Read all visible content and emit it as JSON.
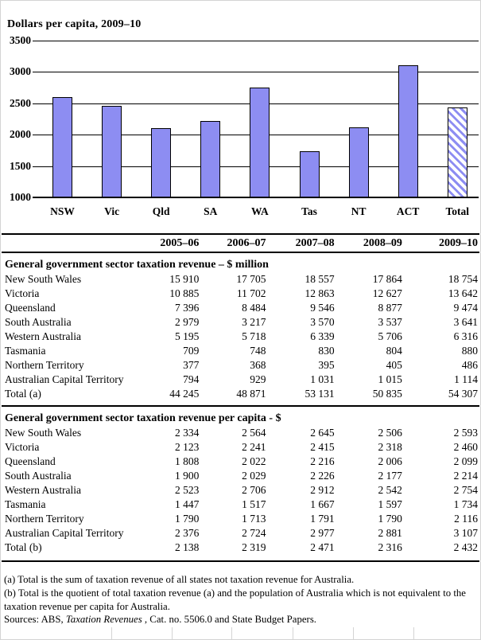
{
  "colors": {
    "bar_fill": "#8d8df2",
    "bar_border": "#000000",
    "grid_color": "#000000",
    "frame_color": "#d4d4d4",
    "text_color": "#000000"
  },
  "chart_data": [
    {
      "type": "bar",
      "title": "Dollars per capita, 2009–10",
      "categories": [
        "NSW",
        "Vic",
        "Qld",
        "SA",
        "WA",
        "Tas",
        "NT",
        "ACT",
        "Total"
      ],
      "values": [
        2593,
        2460,
        2099,
        2214,
        2754,
        1734,
        2116,
        3107,
        2432
      ],
      "hatched_category": "Total",
      "xlabel": "",
      "ylabel": "Dollars per capita",
      "ylim": [
        1000,
        3500
      ],
      "ytick_step": 500,
      "grid": true,
      "legend": "none"
    },
    {
      "type": "table",
      "columns": [
        "2005–06",
        "2006–07",
        "2007–08",
        "2008–09",
        "2009–10"
      ],
      "sections": [
        {
          "title": "General government sector taxation revenue – $ million",
          "rows": [
            {
              "label": "New South Wales",
              "values": [
                "15 910",
                "17 705",
                "18 557",
                "17 864",
                "18 754"
              ]
            },
            {
              "label": "Victoria",
              "values": [
                "10 885",
                "11 702",
                "12 863",
                "12 627",
                "13 642"
              ]
            },
            {
              "label": "Queensland",
              "values": [
                "7 396",
                "8 484",
                "9 546",
                "8 877",
                "9 474"
              ]
            },
            {
              "label": "South Australia",
              "values": [
                "2 979",
                "3 217",
                "3 570",
                "3 537",
                "3 641"
              ]
            },
            {
              "label": "Western Australia",
              "values": [
                "5 195",
                "5 718",
                "6 339",
                "5 706",
                "6 316"
              ]
            },
            {
              "label": "Tasmania",
              "values": [
                "709",
                "748",
                "830",
                "804",
                "880"
              ]
            },
            {
              "label": "Northern Territory",
              "values": [
                "377",
                "368",
                "395",
                "405",
                "486"
              ]
            },
            {
              "label": "Australian Capital Territory",
              "values": [
                "794",
                "929",
                "1 031",
                "1 015",
                "1 114"
              ]
            },
            {
              "label": "Total (a)",
              "values": [
                "44 245",
                "48 871",
                "53 131",
                "50 835",
                "54 307"
              ]
            }
          ]
        },
        {
          "title": "General government sector taxation revenue per capita - $",
          "rows": [
            {
              "label": "New South Wales",
              "values": [
                "2 334",
                "2 564",
                "2 645",
                "2 506",
                "2 593"
              ]
            },
            {
              "label": "Victoria",
              "values": [
                "2 123",
                "2 241",
                "2 415",
                "2 318",
                "2 460"
              ]
            },
            {
              "label": "Queensland",
              "values": [
                "1 808",
                "2 022",
                "2 216",
                "2 006",
                "2 099"
              ]
            },
            {
              "label": "South Australia",
              "values": [
                "1 900",
                "2 029",
                "2 226",
                "2 177",
                "2 214"
              ]
            },
            {
              "label": "Western Australia",
              "values": [
                "2 523",
                "2 706",
                "2 912",
                "2 542",
                "2 754"
              ]
            },
            {
              "label": "Tasmania",
              "values": [
                "1 447",
                "1 517",
                "1 667",
                "1 597",
                "1 734"
              ]
            },
            {
              "label": "Northern Territory",
              "values": [
                "1 790",
                "1 713",
                "1 791",
                "1 790",
                "2 116"
              ]
            },
            {
              "label": "Australian Capital Territory",
              "values": [
                "2 376",
                "2 724",
                "2 977",
                "2 881",
                "3 107"
              ]
            },
            {
              "label": "Total (b)",
              "values": [
                "2 138",
                "2 319",
                "2 471",
                "2 316",
                "2 432"
              ]
            }
          ]
        }
      ]
    }
  ],
  "footnotes": {
    "a": "(a) Total is the sum of taxation revenue of all states not taxation revenue for Australia.",
    "b": "(b) Total is the quotient of total taxation revenue (a) and the population of Australia which is not equivalent to the taxation revenue per capita for Australia.",
    "sources_prefix": "Sources: ABS, ",
    "sources_italic": "Taxation Revenues",
    "sources_suffix": " , Cat. no. 5506.0 and State Budget Papers."
  }
}
